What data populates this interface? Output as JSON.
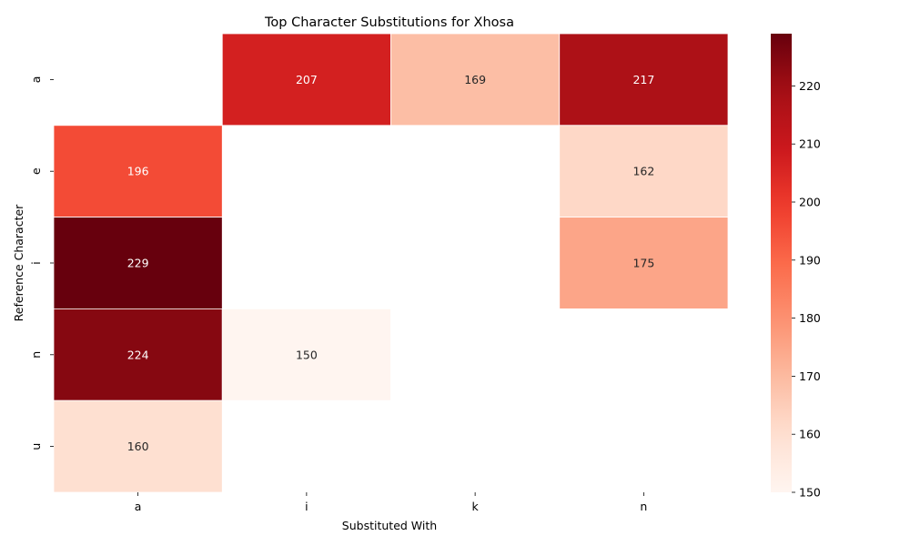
{
  "chart_data": {
    "type": "heatmap",
    "title": "Top Character Substitutions for Xhosa",
    "xlabel": "Substituted With",
    "ylabel": "Reference Character",
    "x_categories": [
      "a",
      "i",
      "k",
      "n"
    ],
    "y_categories": [
      "a",
      "e",
      "i",
      "n",
      "u"
    ],
    "values": [
      [
        null,
        207,
        169,
        217
      ],
      [
        196,
        null,
        null,
        162
      ],
      [
        229,
        null,
        null,
        175
      ],
      [
        224,
        150,
        null,
        null
      ],
      [
        160,
        null,
        null,
        null
      ]
    ],
    "colorbar": {
      "colormap": "Reds",
      "vmin": 150,
      "vmax": 229,
      "ticks": [
        150,
        160,
        170,
        180,
        190,
        200,
        210,
        220
      ]
    },
    "grid": false,
    "legend": "colorbar-right"
  }
}
